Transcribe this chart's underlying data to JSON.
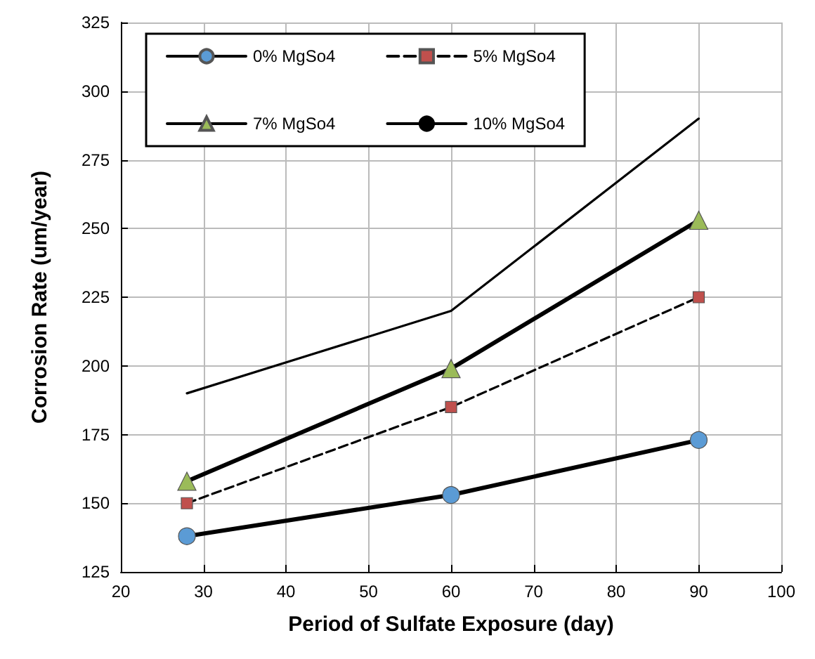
{
  "chart_data": {
    "type": "line",
    "xlabel": "Period of Sulfate Exposure (day)",
    "ylabel": "Corrosion Rate (um/year)",
    "x": [
      28,
      60,
      90
    ],
    "series": [
      {
        "name": "0% MgSo4",
        "color": "#5b9bd5",
        "values": [
          138,
          153,
          173
        ],
        "marker": "circle",
        "line_style": "solid"
      },
      {
        "name": "5% MgSo4",
        "color": "#c0504d",
        "values": [
          150,
          185,
          225
        ],
        "marker": "square",
        "line_style": "dashed"
      },
      {
        "name": "7% MgSo4",
        "color": "#9bbb59",
        "values": [
          158,
          199,
          253
        ],
        "marker": "triangle",
        "line_style": "solid"
      },
      {
        "name": "10% MgSo4",
        "color": "#000000",
        "values": [
          190,
          220,
          290
        ],
        "marker": "none",
        "line_style": "solid"
      }
    ],
    "xlim": [
      20,
      100
    ],
    "xticks": [
      20,
      30,
      40,
      50,
      60,
      70,
      80,
      90,
      100
    ],
    "ylim": [
      125,
      325
    ],
    "yticks": [
      125,
      150,
      175,
      200,
      225,
      250,
      275,
      300,
      325
    ],
    "grid": true,
    "legend": "top left"
  }
}
